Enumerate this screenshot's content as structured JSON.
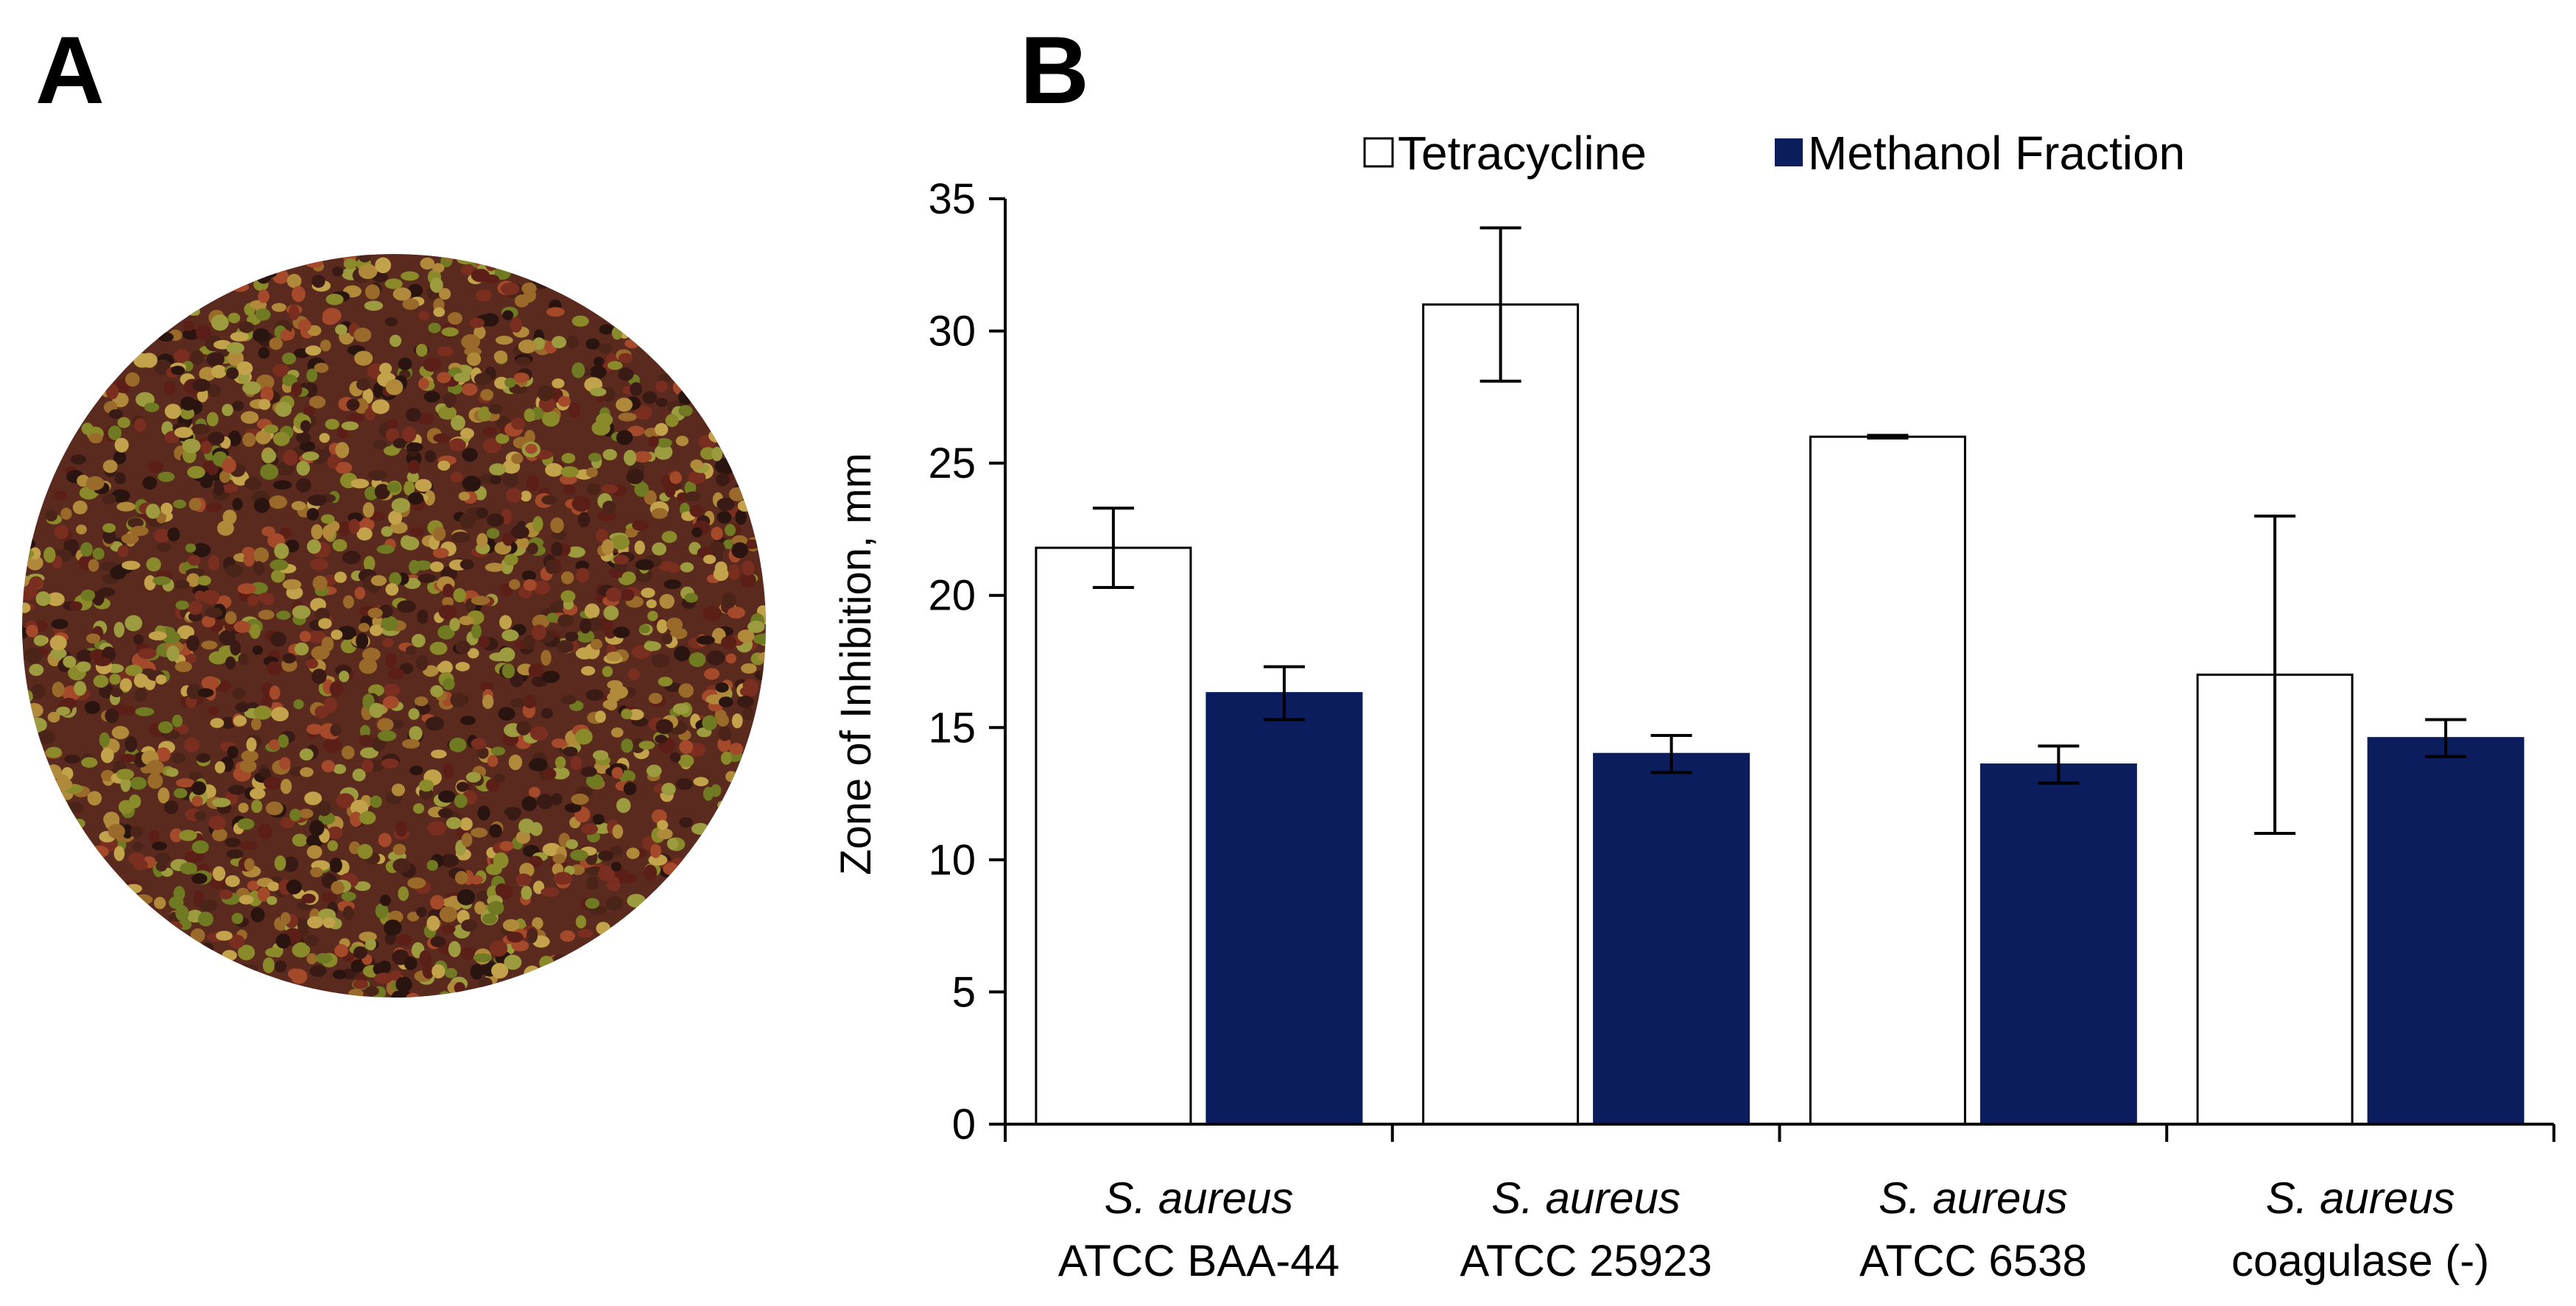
{
  "panels": {
    "a_label": "A",
    "b_label": "B"
  },
  "photo": {
    "subject": "seeds"
  },
  "chart_data": {
    "type": "bar",
    "title": "",
    "xlabel": "",
    "ylabel": "Zone of Inhibition, mm",
    "ylim": [
      0,
      35
    ],
    "yticks": [
      "0",
      "5",
      "10",
      "15",
      "20",
      "25",
      "30",
      "35"
    ],
    "legend_position": "top",
    "categories": [
      {
        "species": "S. aureus",
        "strain": "ATCC BAA-44"
      },
      {
        "species": "S. aureus",
        "strain": "ATCC 25923"
      },
      {
        "species": "S. aureus",
        "strain": "ATCC 6538"
      },
      {
        "species": "S. aureus",
        "strain": "coagulase (-)"
      }
    ],
    "series": [
      {
        "name": "Tetracycline",
        "color": "#ffffff",
        "stroke": "#000000",
        "values": [
          21.8,
          31.0,
          26.0,
          17.0
        ],
        "errors": [
          1.5,
          2.9,
          0.05,
          6.0
        ]
      },
      {
        "name": "Methanol Fraction",
        "color": "#0b1d5c",
        "stroke": "#0b1d5c",
        "values": [
          16.3,
          14.0,
          13.6,
          14.6
        ],
        "errors": [
          1.0,
          0.7,
          0.7,
          0.7
        ]
      }
    ]
  }
}
